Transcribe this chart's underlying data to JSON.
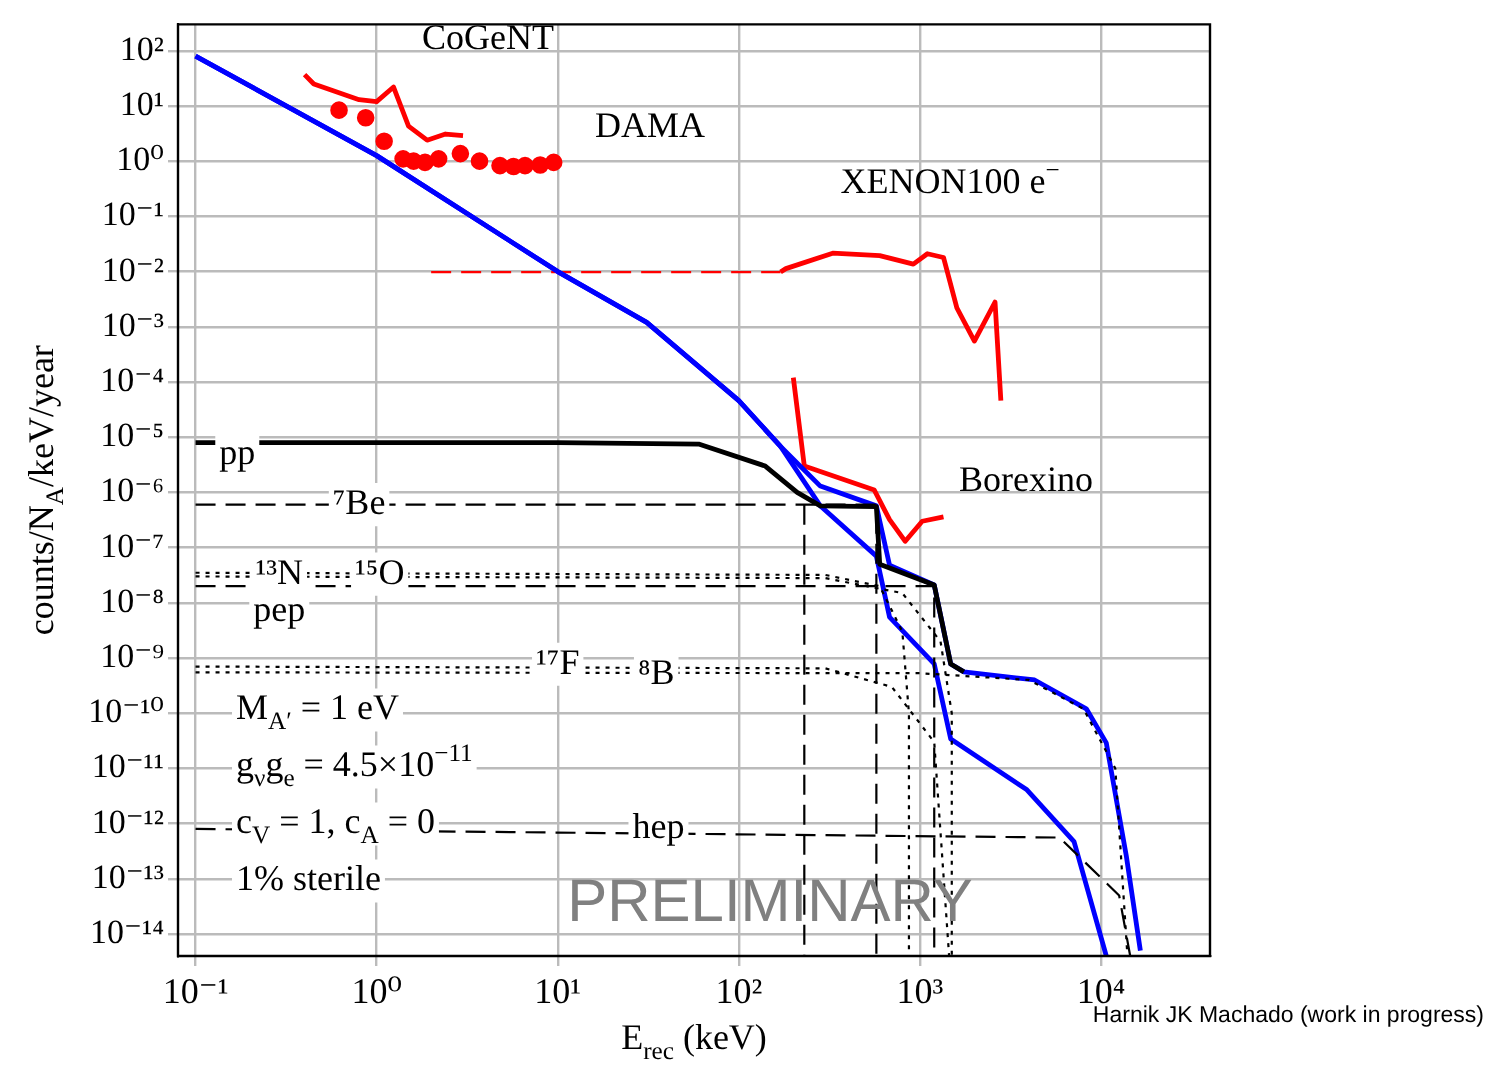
{
  "chart_data": {
    "type": "line",
    "xlabel": "E$_{rec}$ (keV)",
    "ylabel": "counts/N$_{A}$/keV/year",
    "log": "xy",
    "grid": true,
    "legend": false,
    "marker": "none",
    "xlim": [
      0.08,
      40000
    ],
    "ylim": [
      4e-15,
      300
    ],
    "xticks": [
      {
        "value": 0.1,
        "label": "10⁻¹"
      },
      {
        "value": 1,
        "label": "10⁰"
      },
      {
        "value": 10,
        "label": "10¹"
      },
      {
        "value": 100,
        "label": "10²"
      },
      {
        "value": 1000,
        "label": "10³"
      },
      {
        "value": 10000,
        "label": "10⁴"
      }
    ],
    "yticks": [
      {
        "value": 1e-14,
        "label": "10⁻¹⁴"
      },
      {
        "value": 1e-13,
        "label": "10⁻¹³"
      },
      {
        "value": 1e-12,
        "label": "10⁻¹²"
      },
      {
        "value": 1e-11,
        "label": "10⁻¹¹"
      },
      {
        "value": 1e-10,
        "label": "10⁻¹⁰"
      },
      {
        "value": 1e-09,
        "label": "10⁻⁹"
      },
      {
        "value": 1e-08,
        "label": "10⁻⁸"
      },
      {
        "value": 1e-07,
        "label": "10⁻⁷"
      },
      {
        "value": 1e-06,
        "label": "10⁻⁶"
      },
      {
        "value": 1e-05,
        "label": "10⁻⁵"
      },
      {
        "value": 0.0001,
        "label": "10⁻⁴"
      },
      {
        "value": 0.001,
        "label": "10⁻³"
      },
      {
        "value": 0.01,
        "label": "10⁻²"
      },
      {
        "value": 0.1,
        "label": "10⁻¹"
      },
      {
        "value": 1,
        "label": "10⁰"
      },
      {
        "value": 10,
        "label": "10¹"
      },
      {
        "value": 100,
        "label": "10²"
      }
    ],
    "series": [
      {
        "line_style": "dashed",
        "color": "#000000",
        "x": [
          0.1,
          575,
          575
        ],
        "values": [
          6e-07,
          6e-07,
          4e-15
        ]
      },
      {
        "line_style": "dashed",
        "color": "#000000",
        "x": [
          230,
          230
        ],
        "values": [
          6e-07,
          4e-15
        ]
      },
      {
        "line_style": "dashed",
        "color": "#000000",
        "x": [
          0.1,
          1200,
          1200
        ],
        "values": [
          2e-08,
          2e-08,
          4e-15
        ]
      },
      {
        "line_style": "dotted",
        "color": "#000000",
        "x": [
          0.1,
          300,
          600,
          800,
          870,
          870
        ],
        "values": [
          3.5e-08,
          3.2e-08,
          2e-08,
          3e-09,
          1e-10,
          4e-15
        ]
      },
      {
        "line_style": "dotted",
        "color": "#000000",
        "x": [
          0.1,
          300,
          800,
          1300,
          1500,
          1500
        ],
        "values": [
          3e-08,
          2.8e-08,
          1.5e-08,
          2e-09,
          1e-10,
          4e-15
        ]
      },
      {
        "line_style": "dotted",
        "color": "#000000",
        "x": [
          0.1,
          300,
          700,
          1200,
          1450
        ],
        "values": [
          7e-10,
          6.5e-10,
          3e-10,
          3e-11,
          4e-15
        ]
      },
      {
        "line_style": "dotted",
        "color": "#000000",
        "x": [
          0.1,
          1000,
          4000,
          8000,
          12000,
          14000
        ],
        "values": [
          5.5e-10,
          5.3e-10,
          4e-10,
          1.2e-10,
          1e-11,
          4e-15
        ]
      },
      {
        "line_style": "dashed",
        "color": "#000000",
        "x": [
          0.1,
          5900,
          12600,
          14500
        ],
        "values": [
          8e-13,
          5.6e-13,
          5e-14,
          4e-15
        ]
      },
      {
        "line_style": "solid",
        "color": "#000000",
        "x": [
          0.1,
          10,
          60,
          140,
          210,
          282,
          575,
          600,
          1200,
          1480,
          1750
        ],
        "values": [
          8e-06,
          8e-06,
          7.5e-06,
          3e-06,
          1e-06,
          5.7e-07,
          5.5e-07,
          5e-08,
          2.1e-08,
          7.8e-10,
          5.6e-10
        ]
      },
      {
        "line_style": "solid",
        "color": "#0000ff",
        "x": [
          0.1,
          1,
          10,
          31,
          100,
          170,
          282,
          575,
          680,
          1200,
          1480,
          1750,
          4300,
          8300,
          10700,
          13800,
          16500
        ],
        "values": [
          80,
          1.26,
          0.01,
          0.0012,
          4.6e-05,
          6.8e-06,
          1.3e-06,
          5.7e-07,
          4.8e-08,
          2.1e-08,
          7.8e-10,
          5.6e-10,
          4e-10,
          1.2e-10,
          2.9e-11,
          2.6e-13,
          5e-15
        ]
      },
      {
        "line_style": "solid",
        "color": "#0000ff",
        "x": [
          0.1,
          1,
          10,
          31,
          100,
          170,
          282,
          575,
          680,
          1200,
          1480,
          3900,
          7100,
          10700
        ],
        "values": [
          80,
          1.26,
          0.01,
          0.0012,
          4.6e-05,
          6.8e-06,
          5.7e-07,
          7e-08,
          5.5e-09,
          7.8e-10,
          3.4e-11,
          4.1e-12,
          4.7e-13,
          4e-15
        ]
      },
      {
        "line_style": "solid",
        "color": "#ff0000",
        "x": [
          0.4,
          0.45,
          0.8,
          1.0,
          1.24,
          1.5,
          1.9,
          2.4,
          3.0
        ],
        "values": [
          37,
          25,
          13,
          12,
          22,
          4.3,
          2.4,
          3.1,
          2.9
        ]
      },
      {
        "type": "scatter",
        "marker": "circle",
        "color": "#ff0000",
        "x": [
          0.62,
          0.87,
          1.1,
          1.4,
          1.6,
          1.85,
          2.2,
          2.9,
          3.7,
          4.8,
          5.7,
          6.6,
          8,
          9.5
        ],
        "values": [
          8.4,
          6.1,
          2.3,
          1.1,
          1.0,
          0.95,
          1.1,
          1.37,
          1.0,
          0.83,
          0.8,
          0.83,
          0.85,
          0.95
        ]
      },
      {
        "line_style": "dashed",
        "color": "#ff0000",
        "x": [
          2,
          170
        ],
        "values": [
          0.0098,
          0.0098
        ]
      },
      {
        "line_style": "solid",
        "color": "#ff0000",
        "x": [
          170,
          182,
          330,
          600,
          920,
          1100,
          1350,
          1600,
          2000,
          2600,
          2800
        ],
        "values": [
          0.0098,
          0.0113,
          0.0215,
          0.0195,
          0.0136,
          0.021,
          0.018,
          0.0022,
          0.00055,
          0.0028,
          4.6e-05
        ]
      },
      {
        "line_style": "solid",
        "color": "#ff0000",
        "x": [
          200,
          230,
          560,
          680,
          830,
          1030,
          1350
        ],
        "values": [
          0.00012,
          3e-06,
          1.1e-06,
          3.2e-07,
          1.3e-07,
          3e-07,
          3.6e-07
        ]
      }
    ],
    "annotations": [
      "CoGeNT",
      "DAMA",
      "XENON100 e$^{−}$",
      "Borexino",
      {
        "text": "pp",
        "x": 0.17,
        "y": 4.9e-06
      },
      {
        "text": "⁷Be",
        "x": 0.8,
        "y": 6e-07
      },
      {
        "text": "¹³N",
        "x": 0.29,
        "y": 3.3e-08
      },
      {
        "text": "¹⁵O",
        "x": 1.04,
        "y": 3.3e-08
      },
      {
        "text": "pep",
        "x": 0.29,
        "y": 7e-09
      },
      {
        "text": "¹⁷F",
        "x": 10,
        "y": 7.7e-10
      },
      {
        "text": "⁸B",
        "x": 35,
        "y": 5e-10
      },
      {
        "text": "hep",
        "x": 36,
        "y": 8e-13
      },
      "M$_{A′}$ = 1 eV",
      "g$_{ν}$g$_{e}$ = 4.5×10$^{−11}$",
      "c$_{V}$ = 1, c$_{A}$ = 0",
      "1% sterile",
      "PRELIMINARY",
      "Harnik JK Machado (work in progress)"
    ]
  }
}
